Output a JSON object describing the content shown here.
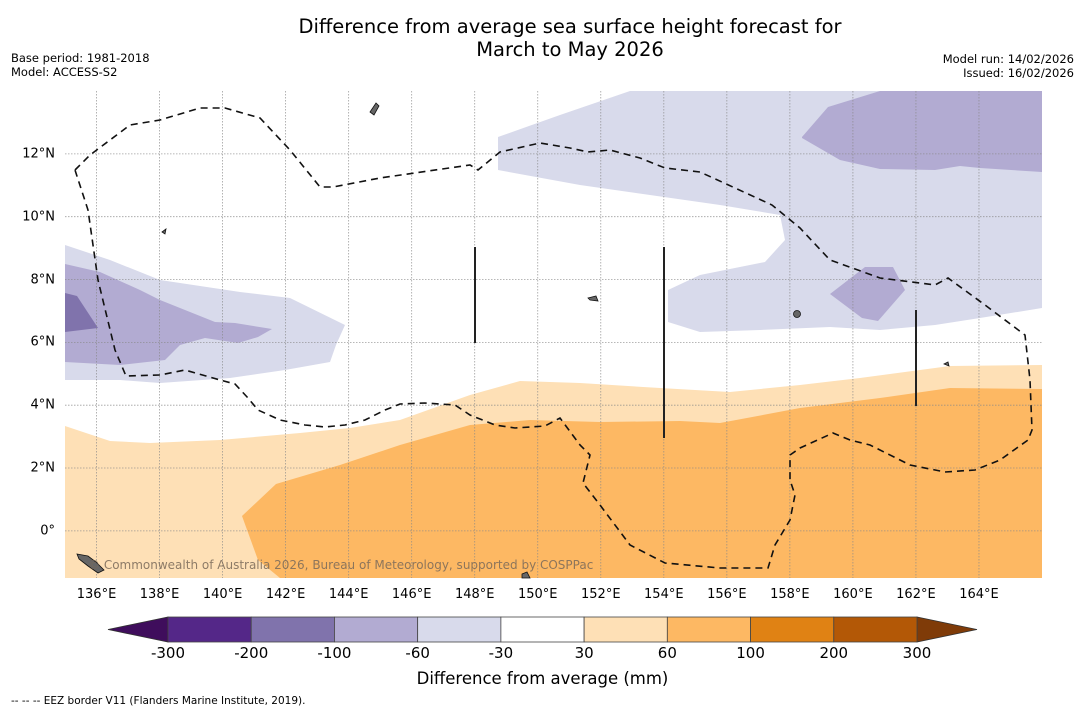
{
  "title_line1": "Difference from average sea surface height forecast for",
  "title_line2": "March to May 2026",
  "meta_left": [
    "Base period: 1981-2018",
    "Model: ACCESS-S2"
  ],
  "meta_right": [
    "Model run: 14/02/2026",
    "Issued: 16/02/2026"
  ],
  "credit": "© Commonwealth of Australia 2026, Bureau of Meteorology, supported by COSPPac",
  "footnote": "--  --  -- EEZ border V11 (Flanders Marine Institute, 2019).",
  "map": {
    "lon_labels": [
      "136°E",
      "138°E",
      "140°E",
      "142°E",
      "144°E",
      "146°E",
      "148°E",
      "150°E",
      "152°E",
      "154°E",
      "156°E",
      "158°E",
      "160°E",
      "162°E",
      "164°E"
    ],
    "lat_labels": [
      "12°N",
      "10°N",
      "8°N",
      "6°N",
      "4°N",
      "2°N",
      "0°"
    ],
    "lon_range": [
      135,
      166
    ],
    "lat_range": [
      -1.5,
      14
    ],
    "lons": [
      136,
      138,
      140,
      142,
      144,
      146,
      148,
      150,
      152,
      154,
      156,
      158,
      160,
      162,
      164
    ],
    "lats": [
      12,
      10,
      8,
      6,
      4,
      2,
      0
    ]
  },
  "colorbar": {
    "title": "Difference from average (mm)",
    "labels": [
      "-300",
      "-200",
      "-100",
      "-60",
      "-30",
      "30",
      "60",
      "100",
      "200",
      "300"
    ],
    "under_color": "#3f0d5c",
    "over_color": "#7f3b08",
    "colors": [
      "#542788",
      "#8073ac",
      "#b2abd2",
      "#d8daeb",
      "#ffffff",
      "#fee0b6",
      "#fdb863",
      "#e08214",
      "#b35806"
    ]
  },
  "legend_colors": {
    "neg_30_60": "#d8daeb",
    "neg_60_100": "#b2abd2",
    "neg_100_200": "#8073ac",
    "pos_30_60": "#fee0b6",
    "pos_60_100": "#fdb863"
  }
}
